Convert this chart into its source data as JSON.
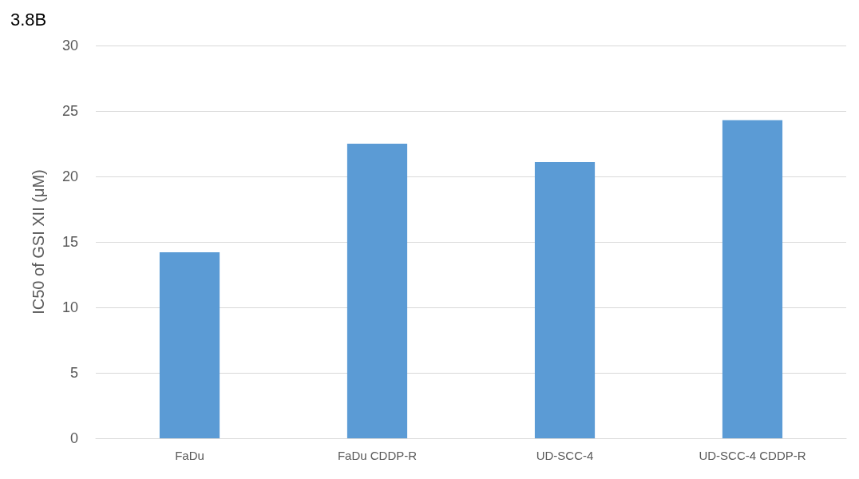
{
  "chart_data": {
    "type": "bar",
    "title": "3.8B",
    "ylabel": "IC50 of GSI XII (μM)",
    "categories": [
      "FaDu",
      "FaDu CDDP-R",
      "UD-SCC-4",
      "UD-SCC-4 CDDP-R"
    ],
    "values": [
      14.2,
      22.5,
      21.1,
      24.3
    ],
    "color": "#5b9bd5",
    "ylim": [
      0,
      30
    ],
    "yticks": [
      0,
      5,
      10,
      15,
      20,
      25,
      30
    ],
    "grid": "y"
  }
}
